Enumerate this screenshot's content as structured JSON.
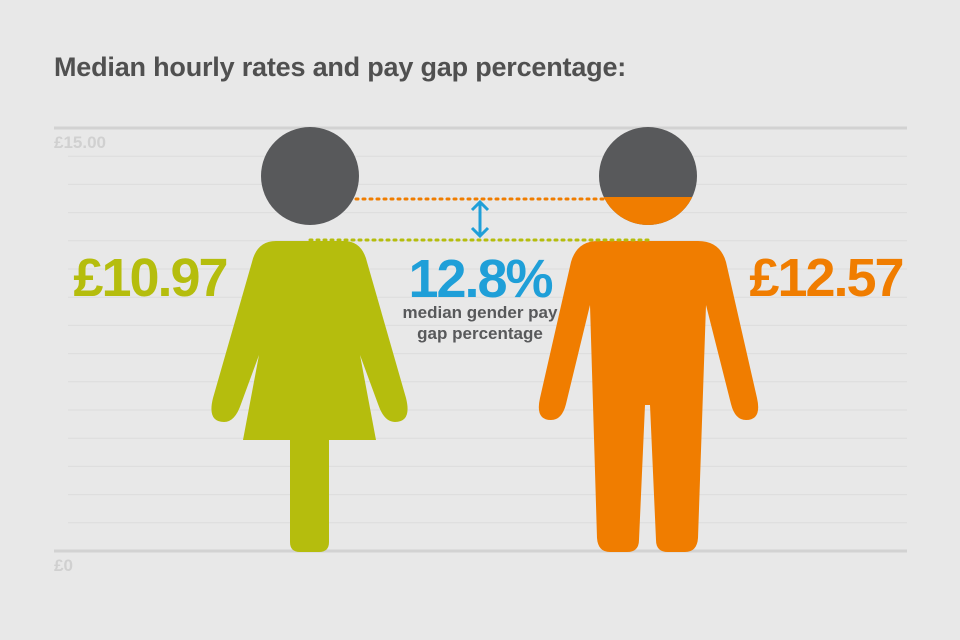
{
  "title": "Median hourly rates and pay gap percentage:",
  "colors": {
    "background": "#e8e8e8",
    "female": "#b5bd0d",
    "male": "#f07d00",
    "gap": "#1f9fd8",
    "head": "#58595b",
    "axis_text": "#d0d0d0",
    "grid": "#dcdcdc"
  },
  "chart_data": {
    "type": "bar",
    "title": "Median hourly rates and pay gap percentage:",
    "categories": [
      "Women",
      "Men"
    ],
    "values": [
      10.97,
      12.57
    ],
    "value_labels": [
      "£10.97",
      "£12.57"
    ],
    "ylim": [
      0,
      15
    ],
    "y_tick_labels": [
      "£0",
      "£15.00"
    ],
    "grid": true,
    "gap": {
      "value": 12.8,
      "label": "12.8%",
      "caption_line1": "median gender pay",
      "caption_line2": "gap percentage"
    }
  }
}
